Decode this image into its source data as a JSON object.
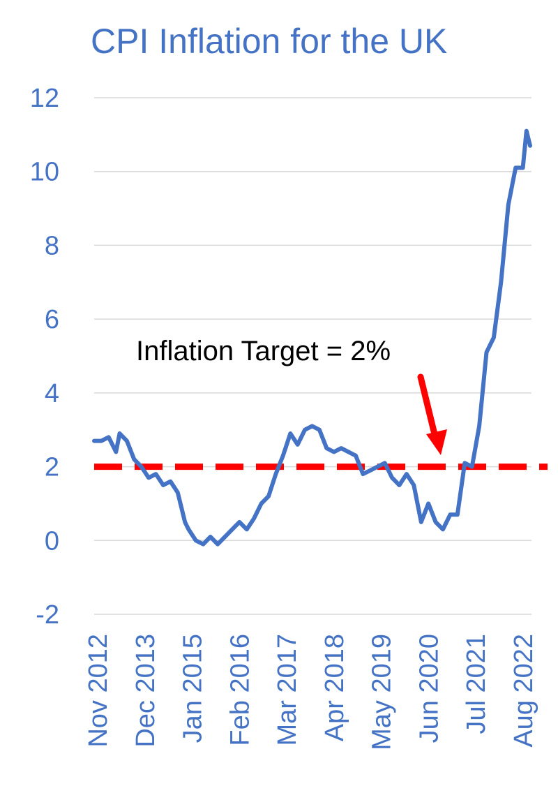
{
  "chart_data": {
    "type": "line",
    "title": "CPI Inflation for the UK",
    "xlabel": "",
    "ylabel": "",
    "ylim": [
      -2,
      12
    ],
    "yticks": [
      "-2",
      "0",
      "2",
      "4",
      "6",
      "8",
      "10",
      "12"
    ],
    "xticks": [
      "Nov 2012",
      "Dec 2013",
      "Jan 2015",
      "Feb 2016",
      "Mar 2017",
      "Apr 2018",
      "May 2019",
      "Jun 2020",
      "Jul 2021",
      "Aug 2022"
    ],
    "grid": true,
    "series_color": "#4472c4",
    "series": [
      {
        "x": [
          "2012-11",
          "2013-01",
          "2013-03",
          "2013-05",
          "2013-06",
          "2013-08",
          "2013-10",
          "2013-12",
          "2014-02",
          "2014-04",
          "2014-06",
          "2014-08",
          "2014-10",
          "2014-12",
          "2015-01",
          "2015-03",
          "2015-05",
          "2015-07",
          "2015-09",
          "2015-11",
          "2016-01",
          "2016-03",
          "2016-05",
          "2016-07",
          "2016-09",
          "2016-11",
          "2017-01",
          "2017-03",
          "2017-05",
          "2017-07",
          "2017-09",
          "2017-11",
          "2018-01",
          "2018-03",
          "2018-05",
          "2018-07",
          "2018-09",
          "2018-11",
          "2019-01",
          "2019-03",
          "2019-05",
          "2019-07",
          "2019-09",
          "2019-11",
          "2020-01",
          "2020-03",
          "2020-05",
          "2020-07",
          "2020-09",
          "2020-11",
          "2021-01",
          "2021-03",
          "2021-05",
          "2021-07",
          "2021-09",
          "2021-11",
          "2022-01",
          "2022-03",
          "2022-05",
          "2022-07",
          "2022-09",
          "2022-10",
          "2022-11"
        ],
        "values": [
          2.7,
          2.7,
          2.8,
          2.4,
          2.9,
          2.7,
          2.2,
          2.0,
          1.7,
          1.8,
          1.5,
          1.6,
          1.3,
          0.5,
          0.3,
          0.0,
          -0.1,
          0.1,
          -0.1,
          0.1,
          0.3,
          0.5,
          0.3,
          0.6,
          1.0,
          1.2,
          1.8,
          2.3,
          2.9,
          2.6,
          3.0,
          3.1,
          3.0,
          2.5,
          2.4,
          2.5,
          2.4,
          2.3,
          1.8,
          1.9,
          2.0,
          2.1,
          1.7,
          1.5,
          1.8,
          1.5,
          0.5,
          1.0,
          0.5,
          0.3,
          0.7,
          0.7,
          2.1,
          2.0,
          3.1,
          5.1,
          5.5,
          7.0,
          9.1,
          10.1,
          10.1,
          11.1,
          10.7
        ]
      }
    ],
    "reference_line": {
      "value": 2,
      "color": "#ff0000",
      "style": "dashed"
    },
    "annotation": {
      "text": "Inflation Target = 2%",
      "color": "#000000",
      "arrow_color": "#ff0000"
    }
  }
}
